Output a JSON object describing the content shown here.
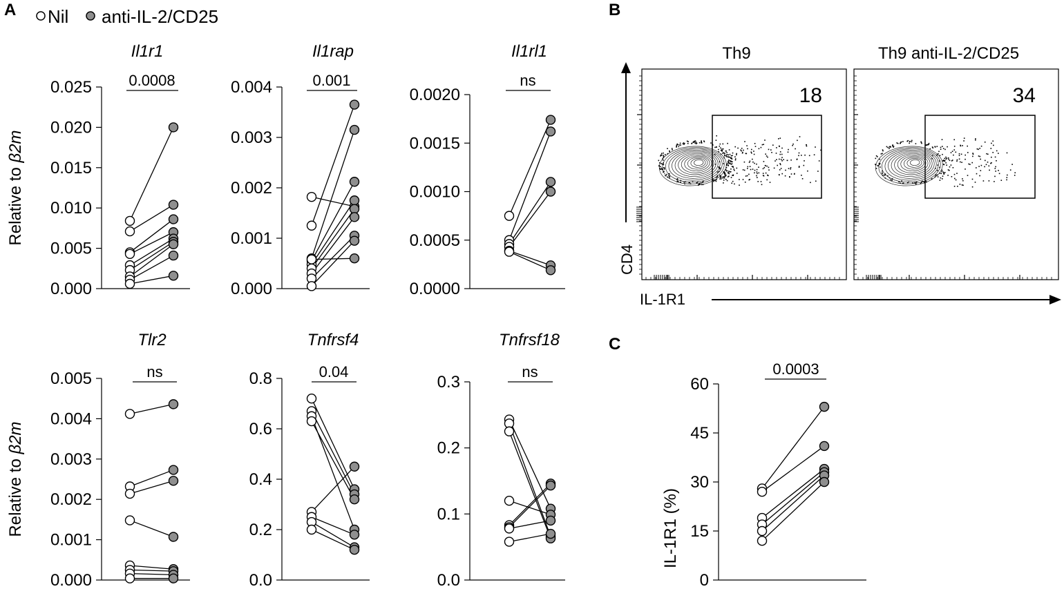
{
  "legend": {
    "nil_label": "Nil",
    "treated_label": "anti-IL-2/CD25"
  },
  "panel_labels": {
    "a": "A",
    "b": "B",
    "c": "C"
  },
  "colors": {
    "open_fill": "#ffffff",
    "filled_fill": "#8f8f8f",
    "stroke": "#000000"
  },
  "chart_data": [
    {
      "panel": "A",
      "type": "scatter",
      "subtype": "paired",
      "title": "Il1r1",
      "ylabel_prefix": "Relative to ",
      "ylabel_gene": "β2m",
      "ylim": [
        0,
        0.025
      ],
      "yticks": [
        "0.000",
        "0.005",
        "0.010",
        "0.015",
        "0.020",
        "0.025"
      ],
      "annotation": "0.0008",
      "pairs": [
        [
          0.0084,
          0.02
        ],
        [
          0.0071,
          0.0104
        ],
        [
          0.0045,
          0.0086
        ],
        [
          0.0043,
          0.007
        ],
        [
          0.0029,
          0.0062
        ],
        [
          0.0023,
          0.0058
        ],
        [
          0.0015,
          0.0055
        ],
        [
          0.0011,
          0.0041
        ],
        [
          0.0006,
          0.0016
        ]
      ]
    },
    {
      "panel": "A",
      "type": "scatter",
      "subtype": "paired",
      "title": "Il1rap",
      "ylim": [
        0,
        0.004
      ],
      "yticks": [
        "0.000",
        "0.001",
        "0.002",
        "0.003",
        "0.004"
      ],
      "annotation": "0.001",
      "pairs": [
        [
          0.00182,
          0.00163
        ],
        [
          0.00125,
          0.00365
        ],
        [
          0.0006,
          0.00315
        ],
        [
          0.00055,
          0.00212
        ],
        [
          0.00048,
          0.00175
        ],
        [
          0.0004,
          0.00158
        ],
        [
          0.0003,
          0.00142
        ],
        [
          0.0002,
          0.00105
        ],
        [
          5e-05,
          0.00095
        ],
        [
          0.00058,
          0.0006
        ]
      ]
    },
    {
      "panel": "A",
      "type": "scatter",
      "subtype": "paired",
      "title": "Il1rl1",
      "ylim": [
        0,
        0.002
      ],
      "yticks": [
        "0.0000",
        "0.0005",
        "0.0010",
        "0.0015",
        "0.0020"
      ],
      "annotation": "ns",
      "pairs": [
        [
          0.00075,
          0.00174
        ],
        [
          0.0005,
          0.00162
        ],
        [
          0.00046,
          0.0011
        ],
        [
          0.00043,
          0.001
        ],
        [
          0.00039,
          0.00024
        ],
        [
          0.00038,
          0.00019
        ]
      ]
    },
    {
      "panel": "A",
      "type": "scatter",
      "subtype": "paired",
      "title": "Tlr2",
      "ylabel_prefix": "Relative to ",
      "ylabel_gene": "β2m",
      "ylim": [
        0,
        0.005
      ],
      "yticks": [
        "0.000",
        "0.001",
        "0.002",
        "0.003",
        "0.004",
        "0.005"
      ],
      "annotation": "ns",
      "pairs": [
        [
          0.00412,
          0.00436
        ],
        [
          0.00232,
          0.00273
        ],
        [
          0.00214,
          0.00246
        ],
        [
          0.00148,
          0.00107
        ],
        [
          0.00036,
          0.00027
        ],
        [
          0.00025,
          0.00022
        ],
        [
          0.00016,
          0.00013
        ],
        [
          4e-05,
          4e-05
        ]
      ]
    },
    {
      "panel": "A",
      "type": "scatter",
      "subtype": "paired",
      "title": "Tnfrsf4",
      "ylim": [
        0,
        0.8
      ],
      "yticks": [
        "0.0",
        "0.2",
        "0.4",
        "0.6",
        "0.8"
      ],
      "annotation": "0.04",
      "pairs": [
        [
          0.72,
          0.36
        ],
        [
          0.67,
          0.34
        ],
        [
          0.65,
          0.2
        ],
        [
          0.63,
          0.32
        ],
        [
          0.27,
          0.45
        ],
        [
          0.25,
          0.18
        ],
        [
          0.23,
          0.13
        ],
        [
          0.2,
          0.12
        ]
      ]
    },
    {
      "panel": "A",
      "type": "scatter",
      "subtype": "paired",
      "title": "Tnfrsf18",
      "ylim": [
        0,
        0.3
      ],
      "yticks": [
        "0.0",
        "0.1",
        "0.2",
        "0.3"
      ],
      "annotation": "ns",
      "pairs": [
        [
          0.243,
          0.108
        ],
        [
          0.237,
          0.066
        ],
        [
          0.225,
          0.063
        ],
        [
          0.12,
          0.099
        ],
        [
          0.083,
          0.146
        ],
        [
          0.08,
          0.143
        ],
        [
          0.078,
          0.09
        ],
        [
          0.058,
          0.07
        ]
      ]
    },
    {
      "panel": "C",
      "type": "scatter",
      "subtype": "paired",
      "ylabel": "IL-1R1 (%)",
      "ylim": [
        0,
        60
      ],
      "yticks": [
        "0",
        "15",
        "30",
        "45",
        "60"
      ],
      "annotation": "0.0003",
      "pairs": [
        [
          28,
          53
        ],
        [
          27,
          41
        ],
        [
          19,
          34
        ],
        [
          17,
          33
        ],
        [
          15,
          32
        ],
        [
          12,
          30
        ]
      ]
    }
  ],
  "flow": {
    "y_axis_label": "CD4",
    "x_axis_label": "IL-1R1",
    "plots": [
      {
        "title": "Th9",
        "gate_percent": "18"
      },
      {
        "title": "Th9 anti-IL-2/CD25",
        "gate_percent": "34"
      }
    ]
  }
}
